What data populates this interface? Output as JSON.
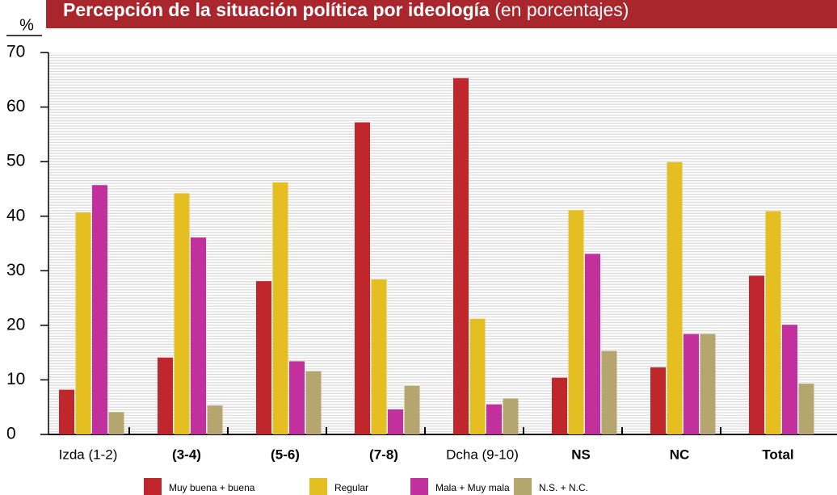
{
  "chart_data": {
    "type": "bar",
    "title": "Percepción de la situación política por ideología",
    "subtitle": "(en porcentajes)",
    "y_label": "%",
    "categories": [
      "Izda (1-2)",
      "(3-4)",
      "(5-6)",
      "(7-8)",
      "Dcha (9-10)",
      "NS",
      "NC",
      "Total"
    ],
    "series": [
      {
        "name": "Muy buena + buena",
        "color": "#c0272d",
        "values": [
          8.2,
          14.1,
          28.1,
          57.2,
          65.3,
          10.4,
          12.3,
          29.1
        ]
      },
      {
        "name": "Regular",
        "color": "#e5be21",
        "values": [
          40.7,
          44.2,
          46.2,
          28.4,
          21.2,
          41.1,
          49.9,
          40.9
        ]
      },
      {
        "name": "Mala + Muy mala",
        "color": "#c1309c",
        "values": [
          45.7,
          36.1,
          13.4,
          4.6,
          5.5,
          33.1,
          18.4,
          20.1
        ]
      },
      {
        "name": "N.S. + N.C.",
        "color": "#b4a66e",
        "values": [
          4.1,
          5.3,
          11.6,
          8.9,
          6.6,
          15.3,
          18.4,
          9.3
        ]
      }
    ],
    "ylim": [
      0,
      70
    ],
    "yticks": [
      0,
      10,
      20,
      30,
      40,
      50,
      60,
      70
    ],
    "grid": true
  }
}
